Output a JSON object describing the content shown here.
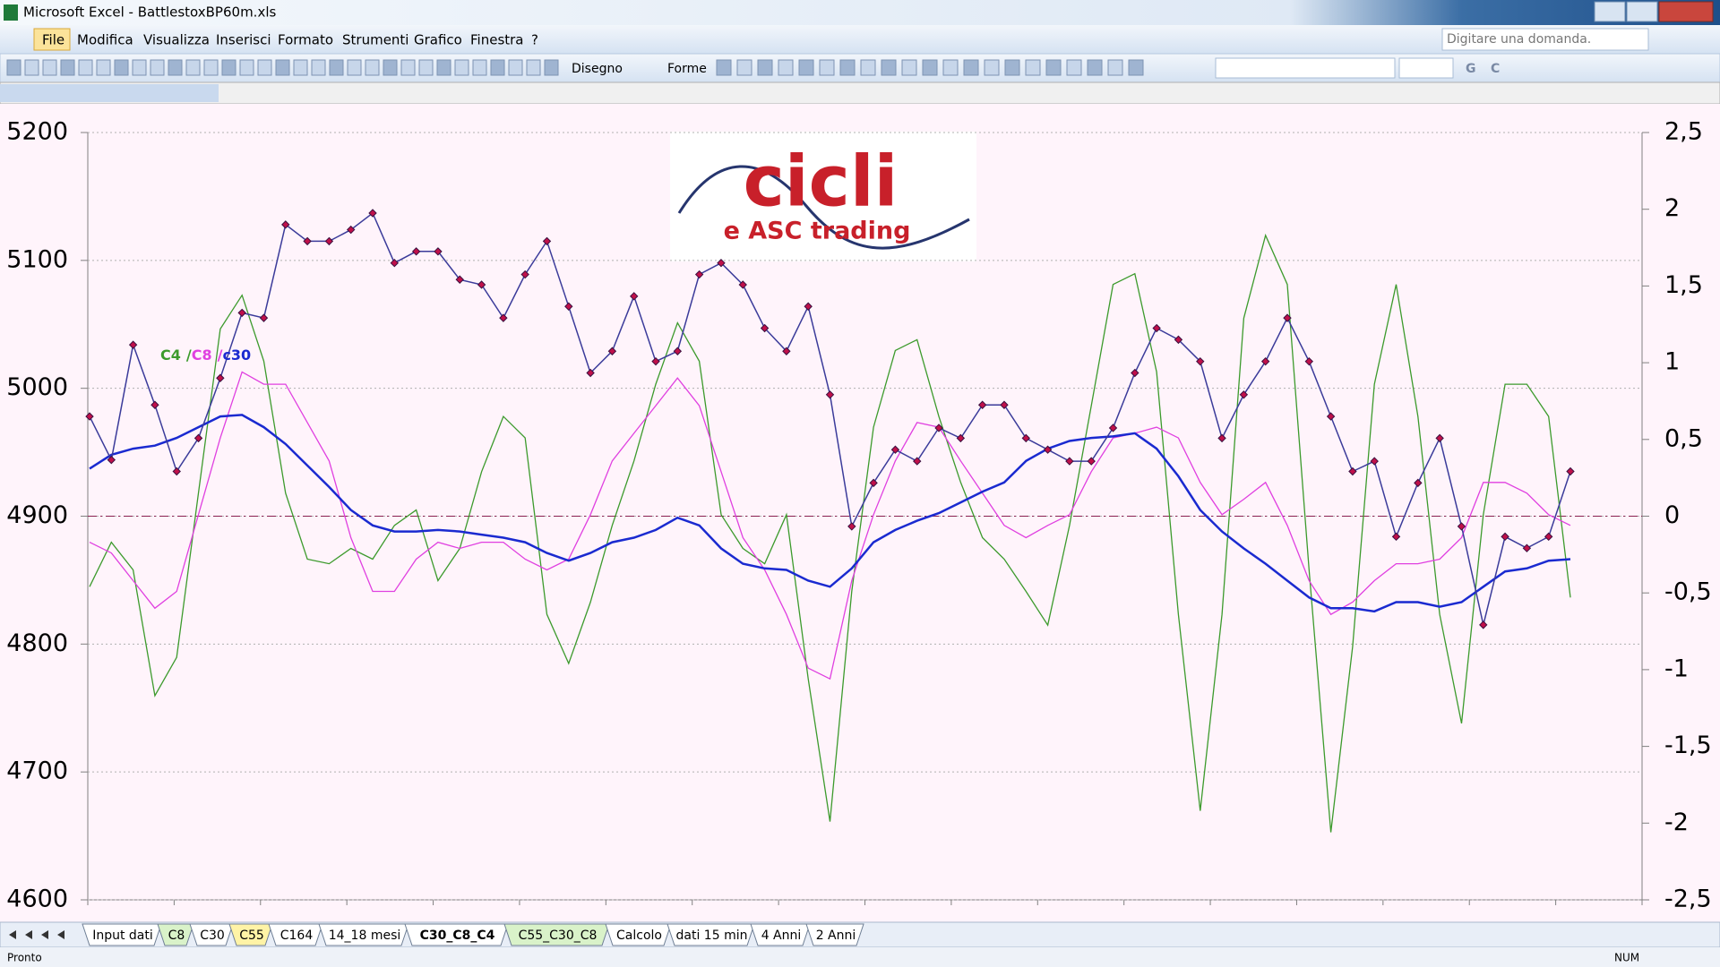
{
  "window": {
    "title": "Microsoft Excel - BattlestoxBP60m.xls",
    "menus": [
      "File",
      "Modifica",
      "Visualizza",
      "Inserisci",
      "Formato",
      "Strumenti",
      "Grafico",
      "Finestra",
      "?"
    ],
    "help_box": "Digitare una domanda.",
    "toolbar": [
      "Disegno",
      "Forme"
    ],
    "font_buttons": [
      "G",
      "C"
    ],
    "sheet_tabs": [
      "Input dati",
      "C8",
      "C30",
      "C55",
      "C164",
      "14_18 mesi",
      "C30_C8_C4",
      "C55_C30_C8",
      "Calcolo",
      "dati 15 min",
      "4 Anni",
      "2 Anni"
    ],
    "active_tab": 6,
    "status": "Pronto",
    "status_right": "NUM"
  },
  "logo": {
    "title": "cicli",
    "subtitle": "e ASC trading"
  },
  "chart_data": {
    "type": "line",
    "ylim": [
      4600,
      5200
    ],
    "yticks": [
      4600,
      4700,
      4800,
      4900,
      5000,
      5100,
      5200
    ],
    "y2lim": [
      -2.5,
      2.5
    ],
    "y2ticks": [
      {
        "value": -2.5,
        "label": "-2,5"
      },
      -2,
      {
        "value": -1.5,
        "label": "-1,5"
      },
      -1,
      {
        "value": -0.5,
        "label": "-0,5"
      },
      0,
      {
        "value": 0.5,
        "label": "0,5"
      },
      1,
      {
        "value": 1.5,
        "label": "1,5"
      },
      2,
      {
        "value": 2.5,
        "label": "2,5"
      }
    ],
    "grid": true,
    "reference_line_y2": 0,
    "legend_separator": "/",
    "series": [
      {
        "color": "#3b3b9a",
        "marker_color": "#c0104a",
        "axis": "y",
        "values": [
          4978,
          4944,
          5034,
          4987,
          4935,
          4961,
          5008,
          5059,
          5055,
          5128,
          5115,
          5115,
          5124,
          5137,
          5098,
          5107,
          5107,
          5085,
          5081,
          5055,
          5089,
          5115,
          5064,
          5012,
          5029,
          5072,
          5021,
          5029,
          5089,
          5098,
          5081,
          5047,
          5029,
          5064,
          4995,
          4892,
          4926,
          4952,
          4943,
          4969,
          4961,
          4987,
          4987,
          4961,
          4952,
          4943,
          4943,
          4969,
          5012,
          5047,
          5038,
          5021,
          4961,
          4995,
          5021,
          5055,
          5021,
          4978,
          4935,
          4943,
          4884,
          4926,
          4961,
          4892,
          4815,
          4884,
          4875,
          4884,
          4935
        ]
      },
      {
        "name": "C4",
        "color": "#3c9a2c",
        "axis": "y2",
        "values": [
          -0.46,
          -0.17,
          -0.35,
          -1.17,
          -0.92,
          0.15,
          1.22,
          1.44,
          1.01,
          0.15,
          -0.28,
          -0.31,
          -0.21,
          -0.28,
          -0.06,
          0.04,
          -0.42,
          -0.21,
          0.29,
          0.65,
          0.51,
          -0.64,
          -0.96,
          -0.56,
          -0.06,
          0.36,
          0.86,
          1.26,
          1.01,
          0.01,
          -0.21,
          -0.31,
          0.01,
          -1.06,
          -1.99,
          -0.49,
          0.58,
          1.08,
          1.15,
          0.65,
          0.22,
          -0.14,
          -0.28,
          -0.49,
          -0.71,
          -0.06,
          0.72,
          1.51,
          1.58,
          0.94,
          -0.64,
          -1.92,
          -0.64,
          1.29,
          1.83,
          1.51,
          -0.35,
          -2.06,
          -0.85,
          0.86,
          1.51,
          0.65,
          -0.64,
          -1.35,
          0.01,
          0.86,
          0.86,
          0.65,
          -0.53
        ]
      },
      {
        "name": "C8",
        "color": "#e040e0",
        "axis": "y2",
        "values": [
          -0.17,
          -0.24,
          -0.42,
          -0.6,
          -0.49,
          0.01,
          0.51,
          0.94,
          0.86,
          0.86,
          0.61,
          0.36,
          -0.14,
          -0.49,
          -0.49,
          -0.28,
          -0.17,
          -0.21,
          -0.17,
          -0.17,
          -0.28,
          -0.35,
          -0.28,
          0.01,
          0.36,
          0.54,
          0.72,
          0.9,
          0.72,
          0.29,
          -0.14,
          -0.35,
          -0.64,
          -0.99,
          -1.06,
          -0.42,
          0.01,
          0.36,
          0.61,
          0.58,
          0.36,
          0.15,
          -0.06,
          -0.14,
          -0.06,
          0.01,
          0.29,
          0.51,
          0.54,
          0.58,
          0.51,
          0.22,
          0.01,
          0.11,
          0.22,
          -0.06,
          -0.42,
          -0.64,
          -0.56,
          -0.42,
          -0.31,
          -0.31,
          -0.28,
          -0.14,
          0.22,
          0.22,
          0.15,
          0.01,
          -0.06
        ]
      },
      {
        "name": "c30",
        "color": "#1a2ad0",
        "axis": "y2",
        "values": [
          0.31,
          0.4,
          0.44,
          0.46,
          0.51,
          0.58,
          0.65,
          0.66,
          0.58,
          0.47,
          0.33,
          0.19,
          0.04,
          -0.06,
          -0.1,
          -0.1,
          -0.09,
          -0.1,
          -0.12,
          -0.14,
          -0.17,
          -0.24,
          -0.29,
          -0.24,
          -0.17,
          -0.14,
          -0.09,
          -0.01,
          -0.06,
          -0.21,
          -0.31,
          -0.34,
          -0.35,
          -0.42,
          -0.46,
          -0.34,
          -0.17,
          -0.09,
          -0.03,
          0.02,
          0.09,
          0.16,
          0.22,
          0.36,
          0.44,
          0.49,
          0.51,
          0.52,
          0.54,
          0.44,
          0.26,
          0.04,
          -0.1,
          -0.21,
          -0.31,
          -0.42,
          -0.53,
          -0.6,
          -0.6,
          -0.62,
          -0.56,
          -0.56,
          -0.59,
          -0.56,
          -0.46,
          -0.36,
          -0.34,
          -0.29,
          -0.28
        ]
      }
    ]
  }
}
